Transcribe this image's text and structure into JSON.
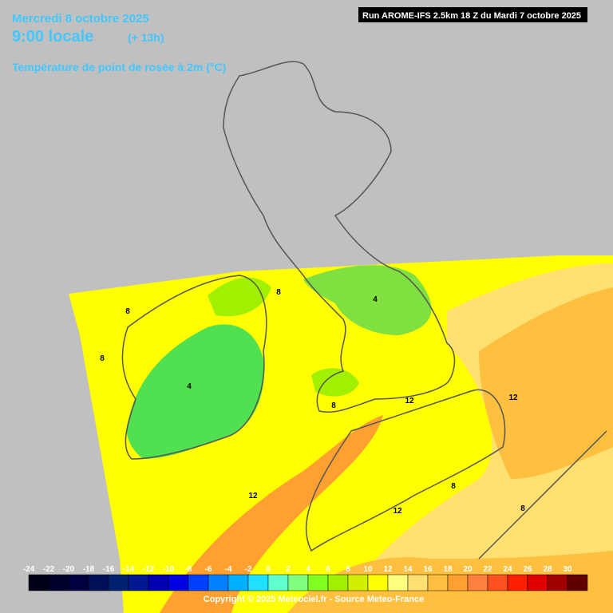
{
  "header": {
    "date": "Mercredi 8 octobre 2025",
    "time": "9:00 locale",
    "lead": "(+ 13h)",
    "variable": "Température de point de rosée à 2m (°C)",
    "run": "Run AROME-IFS 2.5km 18 Z du Mardi 7 octobre 2025"
  },
  "colorbar": {
    "ticks": [
      -24,
      -22,
      -20,
      -18,
      -16,
      -14,
      -12,
      -10,
      -8,
      -6,
      -4,
      -2,
      0,
      2,
      4,
      6,
      8,
      10,
      12,
      14,
      16,
      18,
      20,
      22,
      24,
      26,
      28,
      30
    ],
    "colors": [
      "#000018",
      "#00002c",
      "#000040",
      "#001058",
      "#002070",
      "#001890",
      "#0000b0",
      "#0000e0",
      "#0040ff",
      "#0080ff",
      "#00b0ff",
      "#20e0ff",
      "#60ffd0",
      "#80ff80",
      "#80ff20",
      "#a0f000",
      "#d0f000",
      "#ffff00",
      "#ffff80",
      "#ffe070",
      "#ffc040",
      "#ffa030",
      "#ff8040",
      "#ff5020",
      "#ff2000",
      "#e00000",
      "#a00000",
      "#600000"
    ]
  },
  "contour_labels": [
    8,
    8,
    4,
    4,
    8,
    12,
    8,
    12,
    12,
    12,
    8,
    8
  ],
  "footer": {
    "copyright": "Copyright © 2025 Meteociel.fr - Source Meteo-France"
  }
}
